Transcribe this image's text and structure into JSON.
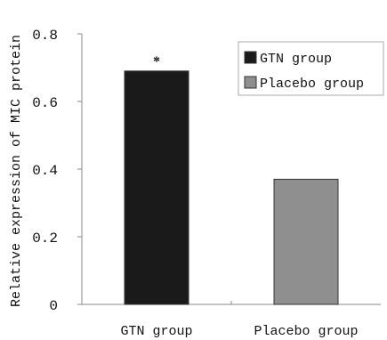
{
  "chart_data": {
    "type": "bar",
    "categories": [
      "GTN group",
      "Placebo group"
    ],
    "values": [
      0.69,
      0.37
    ],
    "bar_colors": [
      "#1a1a1a",
      "#8f8f8f"
    ],
    "ylabel": "Relative expression of MIC protein",
    "xlabel": "",
    "ylim": [
      0,
      0.8
    ],
    "yticks": [
      0,
      0.2,
      0.4,
      0.6,
      0.8
    ],
    "ytick_labels": [
      "0",
      "0.2",
      "0.4",
      "0.6",
      "0.8"
    ],
    "annotations": [
      {
        "category": "GTN group",
        "text": "*"
      }
    ],
    "legend": {
      "placement": "top-right",
      "entries": [
        {
          "label": "GTN group",
          "color": "#1a1a1a"
        },
        {
          "label": "Placebo group",
          "color": "#8f8f8f"
        }
      ]
    },
    "grid": false
  }
}
